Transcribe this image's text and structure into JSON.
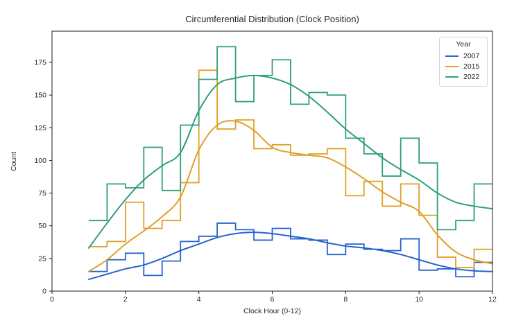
{
  "chart_data": {
    "type": "histogram",
    "subtype": "step-outline with KDE curves",
    "title": "Circumferential Distribution (Clock Position)",
    "xlabel": "Clock Hour (0-12)",
    "ylabel": "Count",
    "xlim": [
      0,
      12
    ],
    "ylim": [
      0,
      199
    ],
    "x_ticks": [
      0,
      2,
      4,
      6,
      8,
      10,
      12
    ],
    "y_ticks": [
      0,
      25,
      50,
      75,
      100,
      125,
      150,
      175
    ],
    "grid": false,
    "bin_start": 1.0,
    "bin_width": 0.5,
    "kde_x_start": 1.0,
    "kde_x_step": 0.5,
    "legend": {
      "title": "Year",
      "position": "upper right"
    },
    "series": [
      {
        "name": "2007",
        "color": "#2463cf",
        "counts": [
          15,
          24,
          29,
          12,
          23,
          38,
          42,
          52,
          47,
          39,
          48,
          40,
          39,
          28,
          36,
          32,
          31,
          40,
          16,
          17,
          11,
          22
        ],
        "kde": [
          9,
          13,
          17,
          20,
          25,
          31,
          36,
          41,
          44,
          45,
          44,
          42,
          40,
          37,
          34.5,
          33,
          31,
          28,
          24,
          20,
          17,
          15.5,
          15
        ]
      },
      {
        "name": "2015",
        "color": "#df9f26",
        "counts": [
          34,
          38,
          68,
          48,
          54,
          83,
          169,
          124,
          131,
          109,
          112,
          104,
          105,
          109,
          73,
          84,
          65,
          82,
          58,
          26,
          18,
          32
        ],
        "kde": [
          15,
          24,
          36,
          46,
          57,
          72,
          108,
          127,
          130,
          123,
          110,
          106,
          104,
          102,
          95,
          86,
          76,
          68,
          61,
          43,
          30,
          24,
          21
        ]
      },
      {
        "name": "2022",
        "color": "#2e9f7d",
        "counts": [
          54,
          82,
          79,
          110,
          77,
          127,
          162,
          187,
          145,
          165,
          177,
          143,
          152,
          150,
          117,
          105,
          88,
          117,
          98,
          47,
          54,
          82
        ],
        "kde": [
          33,
          52,
          70,
          85,
          96,
          106,
          138,
          158,
          163,
          165,
          163,
          158,
          149,
          137,
          124,
          113,
          102,
          93,
          85,
          75,
          68,
          65,
          63
        ]
      }
    ]
  }
}
